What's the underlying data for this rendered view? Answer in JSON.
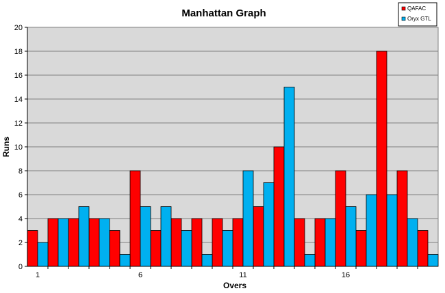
{
  "chart_data": {
    "type": "bar",
    "title": "Manhattan Graph",
    "xlabel": "Overs",
    "ylabel": "Runs",
    "ylim": [
      0,
      20
    ],
    "yticks": [
      0,
      2,
      4,
      6,
      8,
      10,
      12,
      14,
      16,
      18,
      20
    ],
    "categories": [
      "1",
      "2",
      "3",
      "4",
      "5",
      "6",
      "7",
      "8",
      "9",
      "10",
      "11",
      "12",
      "13",
      "14",
      "15",
      "16",
      "17",
      "18",
      "19",
      "20"
    ],
    "x_tick_labels": [
      {
        "category": "1",
        "label": "1"
      },
      {
        "category": "6",
        "label": "6"
      },
      {
        "category": "11",
        "label": "11"
      },
      {
        "category": "16",
        "label": "16"
      }
    ],
    "series": [
      {
        "name": "QAFAC",
        "color": "#ff0000",
        "values": [
          3,
          4,
          4,
          4,
          3,
          8,
          3,
          4,
          4,
          4,
          4,
          5,
          10,
          4,
          4,
          8,
          3,
          18,
          8,
          3
        ]
      },
      {
        "name": "Oryx GTL",
        "color": "#00b0f0",
        "values": [
          2,
          4,
          5,
          4,
          1,
          5,
          5,
          3,
          1,
          3,
          8,
          7,
          15,
          1,
          4,
          5,
          6,
          6,
          4,
          1
        ]
      }
    ],
    "grid": true,
    "plot_background": "#d9d9d9",
    "legend_position": "top-right"
  }
}
